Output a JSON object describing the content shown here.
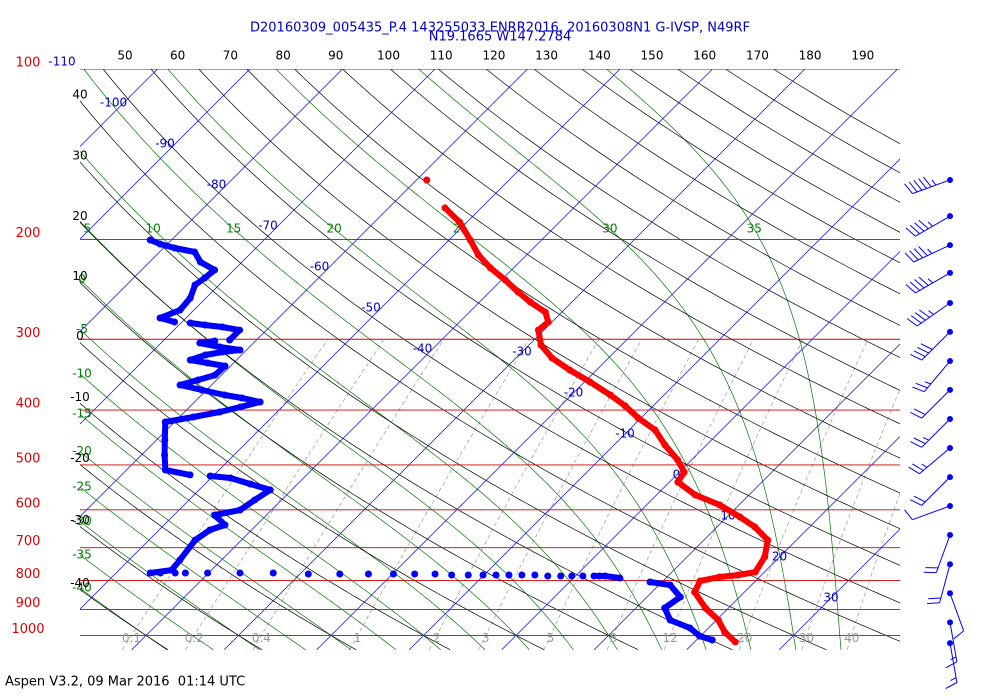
{
  "chart_data": {
    "type": "skewt",
    "title": "D20160309_005435_P.4 143255033 ENRR2016, 20160308N1 G-IVSP, N49RF",
    "subtitle": "N19.1665 W147.2784",
    "footer": "Aspen V3.2, 09 Mar 2016  01:14 UTC",
    "pressure_ticks": [
      100,
      200,
      300,
      400,
      500,
      600,
      700,
      800,
      900,
      1000
    ],
    "isotherm_labels": [
      -110,
      -100,
      -90,
      -80,
      -70,
      -60,
      -50,
      -40,
      -30,
      -20,
      -10,
      0,
      10,
      20,
      30
    ],
    "dry_adiabat_labels": [
      40,
      30,
      20,
      10,
      0,
      -10,
      -20,
      -30,
      -40
    ],
    "top_labels": [
      50,
      60,
      70,
      80,
      90,
      100,
      110,
      120,
      130,
      140,
      150,
      160,
      170,
      180,
      190
    ],
    "moist_adiabat_top_labels": [
      5,
      10,
      15,
      20,
      25,
      30,
      35
    ],
    "moist_adiabat_left_labels": [
      0,
      -5,
      -10,
      -15,
      -20,
      -25,
      -30,
      -35,
      -40
    ],
    "mixing_ratio_labels": [
      0.1,
      0.2,
      0.4,
      1,
      2,
      3,
      5,
      8,
      12,
      20,
      30,
      40
    ],
    "temperature_color": "#ff0000",
    "dewpoint_color": "#0000ff",
    "pressure": [
      157.0,
      175.9,
      186.3,
      200.4,
      213.0,
      224.5,
      235.8,
      247.6,
      257.9,
      268.6,
      279.7,
      289.0,
      307.1,
      323.8,
      339.9,
      356.9,
      376.3,
      393.5,
      413.2,
      433.7,
      461.0,
      490.0,
      514.5,
      535.9,
      565.0,
      588.3,
      617.8,
      643.6,
      678.6,
      727.1,
      772.9,
      782.2,
      788.6,
      801.3,
      838.1,
      894.4,
      939.4,
      986.5,
      1026.8
    ],
    "temperature": [
      -58.9,
      -53.9,
      -50.8,
      -47.7,
      -45.2,
      -42.5,
      -39.6,
      -36.9,
      -34.5,
      -31.8,
      -30.4,
      -30.6,
      -28.7,
      -26.1,
      -22.9,
      -19.4,
      -15.8,
      -13.0,
      -10.3,
      -7.2,
      -4.5,
      -1.5,
      0.5,
      0.9,
      4.2,
      7.9,
      11.4,
      14.1,
      16.9,
      18.4,
      19.0,
      17.5,
      15.7,
      14.0,
      14.6,
      17.5,
      20.2,
      22.2,
      24.4
    ],
    "dewpoint_pressure": [
      200.4,
      203.7,
      207.0,
      210.4,
      219.1,
      226.4,
      233.9,
      240.6,
      253.7,
      266.4,
      275.2,
      279.7,
      280.8,
      283.1,
      285.4,
      289.0,
      300.9,
      302.1,
      304.6,
      309.6,
      313.4,
      315.9,
      319.8,
      326.4,
      330.4,
      334.4,
      347.0,
      354.1,
      361.3,
      368.7,
      376.3,
      380.9,
      387.2,
      395.1,
      403.2,
      411.5,
      419.9,
      451.8,
      480.3,
      510.4,
      520.7,
      523.1,
      527.3,
      540.3,
      553.5,
      576.6,
      600.7,
      613.0,
      638.4,
      651.5,
      678.6,
      735.9,
      766.6,
      775.8,
      775.8,
      775.8,
      775.8,
      775.8,
      775.8,
      775.8,
      779.0,
      779.0,
      779.0,
      779.0,
      779.0,
      779.0,
      782.2,
      782.2,
      782.2,
      782.2,
      782.2,
      782.2,
      782.2,
      785.4,
      785.4,
      785.4,
      785.4,
      785.4,
      785.4,
      785.4,
      791.8,
      804.8,
      814.7,
      855.3,
      894.4,
      939.4,
      970.2,
      1002.3,
      1018.8
    ],
    "dewpoint": [
      -82.3,
      -80.8,
      -78.8,
      -76.2,
      -74.5,
      -72.1,
      -72.3,
      -72.6,
      -71.7,
      -71.5,
      -72.8,
      -70.8,
      -69.0,
      -67.2,
      -65.1,
      -62.9,
      -62.9,
      -64.4,
      -65.8,
      -63.2,
      -60.7,
      -62.4,
      -63.9,
      -65.0,
      -62.8,
      -60.6,
      -60.7,
      -62.0,
      -63.4,
      -60.5,
      -57.5,
      -55.3,
      -52.9,
      -54.5,
      -56.2,
      -58.5,
      -61.0,
      -59.1,
      -57.5,
      -55.8,
      -52.6,
      -50.3,
      -47.9,
      -45.1,
      -42.3,
      -42.9,
      -43.4,
      -45.6,
      -43.4,
      -44.5,
      -45.0,
      -44.5,
      -44.3,
      -46.3,
      -45.2,
      -43.6,
      -42.5,
      -40.1,
      -36.6,
      -33.0,
      -29.1,
      -25.7,
      -22.6,
      -19.9,
      -17.6,
      -15.4,
      -13.5,
      -11.7,
      -10.1,
      -8.7,
      -7.3,
      -5.9,
      -4.5,
      -3.0,
      -1.6,
      -0.4,
      0.8,
      2.0,
      2.6,
      3.2,
      5.0,
      8.7,
      11.2,
      13.6,
      13.1,
      15.0,
      18.0,
      19.9,
      21.7
    ],
    "wind": {
      "color": "#0000ff",
      "pressure": [
        157.0,
        181.9,
        204.6,
        229.1,
        258.9,
        291.1,
        327.8,
        368.5,
        414.8,
        466.8,
        525.4,
        590.8,
        664.8,
        748.6,
        842.6,
        948.3,
        1031.6
      ],
      "direction": [
        250,
        240,
        245,
        240,
        235,
        225,
        220,
        225,
        225,
        230,
        225,
        250,
        200,
        195,
        160,
        170,
        170
      ],
      "speed": [
        55,
        45,
        45,
        45,
        45,
        40,
        25,
        20,
        25,
        25,
        20,
        10,
        20,
        20,
        10,
        15,
        15
      ]
    }
  }
}
